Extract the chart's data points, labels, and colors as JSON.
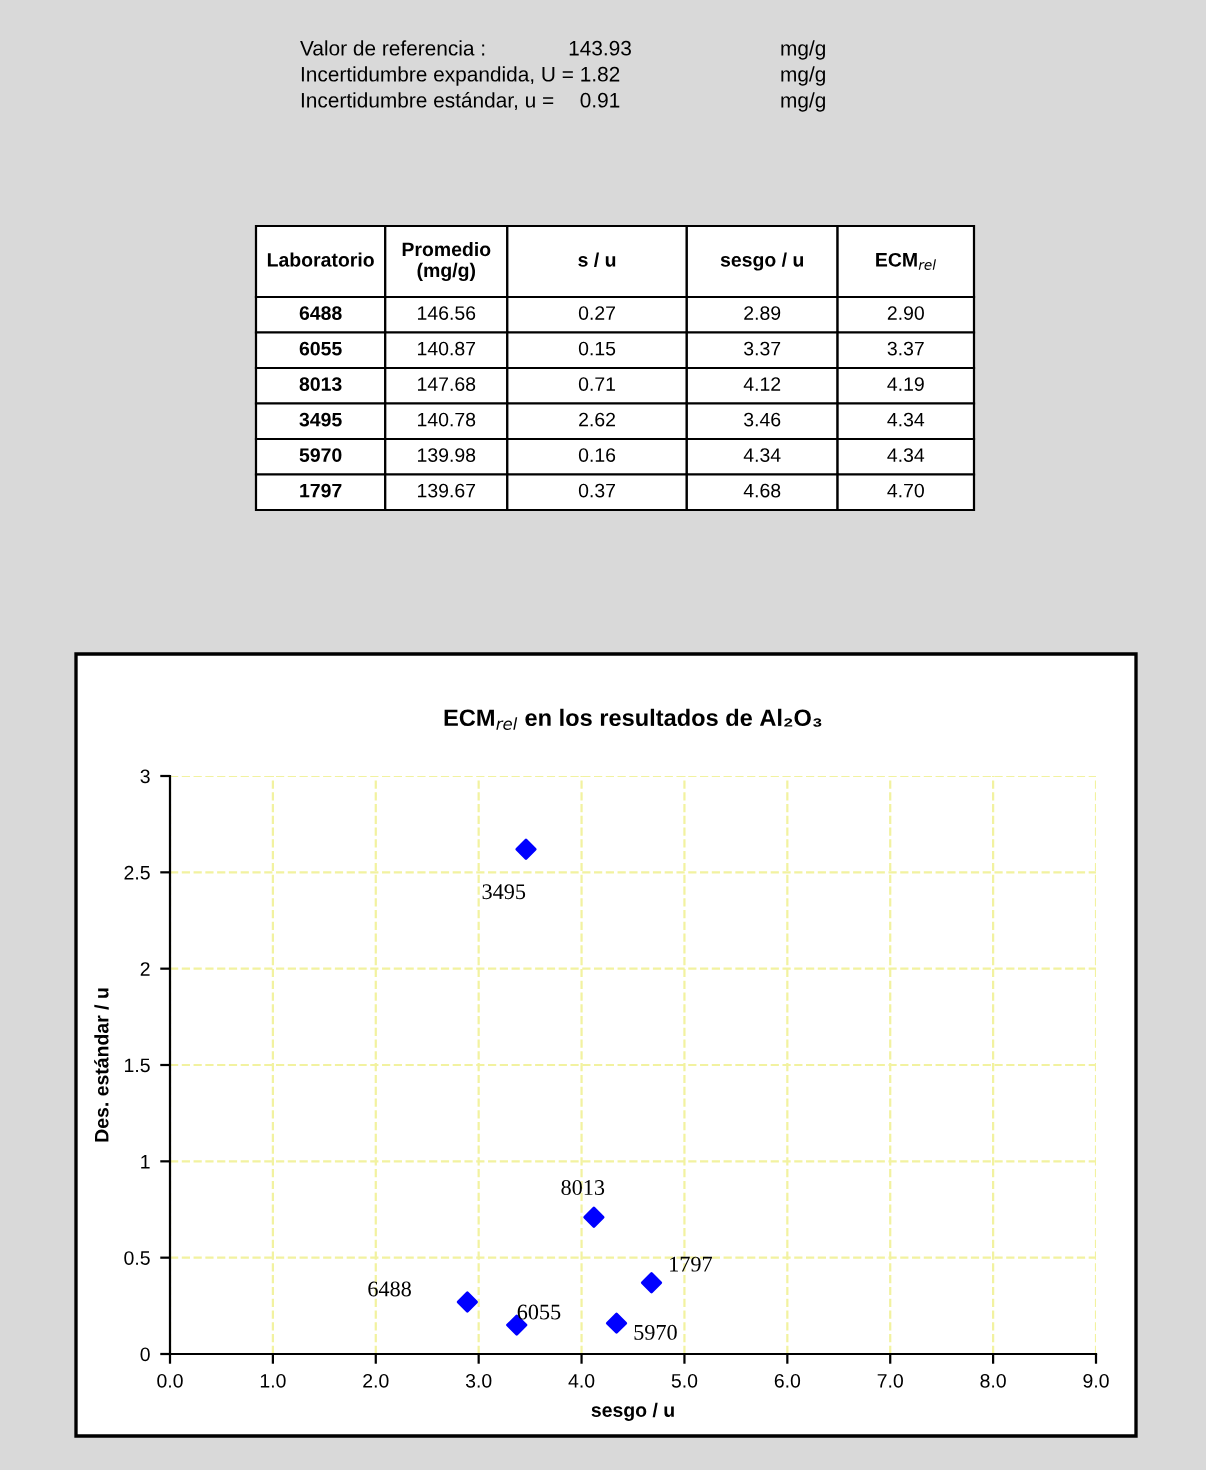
{
  "chart_data": [
    {
      "type": "other",
      "annotations": [
        "Valor de referencia :",
        "143.93",
        "mg/g",
        "Incertidumbre expandida, U =",
        "1.82",
        "mg/g",
        "Incertidumbre estándar, u =",
        "0.91",
        "mg/g"
      ],
      "categories": [
        "Laboratorio",
        "Promedio\n(mg/g)",
        "s / u",
        "sesgo / u",
        "ECM$_{rel}$"
      ],
      "y_categories": [
        "6488",
        "6055",
        "8013",
        "3495",
        "5970",
        "1797"
      ],
      "cell_labels": [
        [
          "146.56",
          "0.27",
          "2.89",
          "2.90"
        ],
        [
          "140.87",
          "0.15",
          "3.37",
          "3.37"
        ],
        [
          "147.68",
          "0.71",
          "4.12",
          "4.19"
        ],
        [
          "140.78",
          "2.62",
          "3.46",
          "4.34"
        ],
        [
          "139.98",
          "0.16",
          "4.34",
          "4.34"
        ],
        [
          "139.67",
          "0.37",
          "4.68",
          "4.70"
        ]
      ]
    },
    {
      "type": "scatter",
      "title": "ECM$_{rel}$ en los resultados de Al₂O₃",
      "xlabel": "sesgo / u",
      "ylabel": "Des. estándar / u",
      "x": [
        2.89,
        3.37,
        4.12,
        3.46,
        4.34,
        4.68
      ],
      "values": [
        0.27,
        0.15,
        0.71,
        2.62,
        0.16,
        0.37
      ],
      "color": "#0000ff",
      "marker": "diamond",
      "grid": true,
      "legend": false,
      "xlim": [
        0,
        9
      ],
      "xticks": [
        {
          "value": 0,
          "label": "0.0"
        },
        {
          "value": 1,
          "label": "1.0"
        },
        {
          "value": 2,
          "label": "2.0"
        },
        {
          "value": 3,
          "label": "3.0"
        },
        {
          "value": 4,
          "label": "4.0"
        },
        {
          "value": 5,
          "label": "5.0"
        },
        {
          "value": 6,
          "label": "6.0"
        },
        {
          "value": 7,
          "label": "7.0"
        },
        {
          "value": 8,
          "label": "8.0"
        },
        {
          "value": 9,
          "label": "9.0"
        }
      ],
      "ylim": [
        0,
        3
      ],
      "yticks": [
        0,
        0.5,
        1,
        1.5,
        2,
        2.5,
        3
      ],
      "annotations": [
        {
          "text": "6488",
          "x": 2.89,
          "y": 0.27
        },
        {
          "text": "6055",
          "x": 3.37,
          "y": 0.15
        },
        {
          "text": "8013",
          "x": 4.12,
          "y": 0.71
        },
        {
          "text": "3495",
          "x": 3.46,
          "y": 2.62
        },
        {
          "text": "5970",
          "x": 4.34,
          "y": 0.16
        },
        {
          "text": "1797",
          "x": 4.68,
          "y": 0.37
        }
      ]
    }
  ]
}
